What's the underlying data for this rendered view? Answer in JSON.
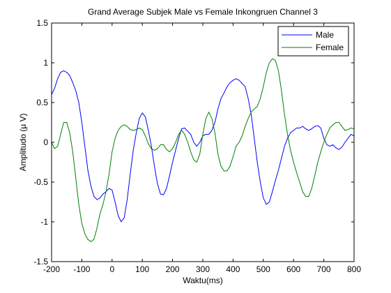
{
  "chart_data": {
    "type": "line",
    "title": "Grand Average Subjek Male vs Female Inkongruen Channel 3",
    "xlabel": "Waktu(ms)",
    "ylabel": "Amplitudo (μ V)",
    "xlim": [
      -200,
      800
    ],
    "ylim": [
      -1.5,
      1.5
    ],
    "xticks": [
      -200,
      -100,
      0,
      100,
      200,
      300,
      400,
      500,
      600,
      700,
      800
    ],
    "yticks": [
      -1.5,
      -1,
      -0.5,
      0,
      0.5,
      1,
      1.5
    ],
    "xtick_labels": [
      "-200",
      "-100",
      "0",
      "100",
      "200",
      "300",
      "400",
      "500",
      "600",
      "700",
      "800"
    ],
    "ytick_labels": [
      "-1.5",
      "-1",
      "-0.5",
      "0",
      "0.5",
      "1",
      "1.5"
    ],
    "grid": false,
    "legend_position": "top-right",
    "series": [
      {
        "name": "Male",
        "color": "#0000ff",
        "x": [
          -200,
          -190,
          -180,
          -170,
          -160,
          -150,
          -140,
          -130,
          -120,
          -110,
          -100,
          -90,
          -80,
          -70,
          -60,
          -50,
          -40,
          -30,
          -20,
          -10,
          0,
          10,
          20,
          30,
          40,
          50,
          60,
          70,
          80,
          90,
          100,
          110,
          120,
          130,
          140,
          150,
          160,
          170,
          180,
          190,
          200,
          210,
          220,
          230,
          240,
          250,
          260,
          270,
          280,
          290,
          300,
          310,
          320,
          330,
          340,
          350,
          360,
          370,
          380,
          390,
          400,
          410,
          420,
          430,
          440,
          450,
          460,
          470,
          480,
          490,
          500,
          510,
          520,
          530,
          540,
          550,
          560,
          570,
          580,
          590,
          600,
          610,
          620,
          630,
          640,
          650,
          660,
          670,
          680,
          690,
          700,
          710,
          720,
          730,
          740,
          750,
          760,
          770,
          780,
          790,
          800
        ],
        "y": [
          0.6,
          0.68,
          0.8,
          0.88,
          0.9,
          0.88,
          0.84,
          0.75,
          0.65,
          0.5,
          0.25,
          -0.05,
          -0.35,
          -0.55,
          -0.68,
          -0.72,
          -0.7,
          -0.65,
          -0.62,
          -0.58,
          -0.6,
          -0.75,
          -0.92,
          -1.0,
          -0.95,
          -0.72,
          -0.4,
          -0.1,
          0.12,
          0.3,
          0.37,
          0.32,
          0.15,
          -0.05,
          -0.3,
          -0.52,
          -0.65,
          -0.66,
          -0.58,
          -0.42,
          -0.25,
          -0.1,
          0.05,
          0.17,
          0.18,
          0.14,
          0.1,
          0.0,
          -0.05,
          0.0,
          0.08,
          0.1,
          0.1,
          0.15,
          0.25,
          0.42,
          0.55,
          0.62,
          0.7,
          0.75,
          0.78,
          0.8,
          0.78,
          0.74,
          0.7,
          0.55,
          0.35,
          0.05,
          -0.25,
          -0.5,
          -0.7,
          -0.78,
          -0.75,
          -0.62,
          -0.48,
          -0.35,
          -0.2,
          -0.05,
          0.05,
          0.12,
          0.15,
          0.18,
          0.18,
          0.2,
          0.17,
          0.15,
          0.17,
          0.2,
          0.21,
          0.18,
          0.05,
          -0.03,
          -0.05,
          -0.03,
          -0.07,
          -0.09,
          -0.06,
          0.0,
          0.05,
          0.1,
          0.08
        ]
      },
      {
        "name": "Female",
        "color": "#008000",
        "x": [
          -200,
          -190,
          -180,
          -170,
          -160,
          -150,
          -140,
          -130,
          -120,
          -110,
          -100,
          -90,
          -80,
          -70,
          -60,
          -50,
          -40,
          -30,
          -20,
          -10,
          0,
          10,
          20,
          30,
          40,
          50,
          60,
          70,
          80,
          90,
          100,
          110,
          120,
          130,
          140,
          150,
          160,
          170,
          180,
          190,
          200,
          210,
          220,
          230,
          240,
          250,
          260,
          270,
          280,
          290,
          300,
          310,
          320,
          330,
          340,
          350,
          360,
          370,
          380,
          390,
          400,
          410,
          420,
          430,
          440,
          450,
          460,
          470,
          480,
          490,
          500,
          510,
          520,
          530,
          540,
          550,
          560,
          570,
          580,
          590,
          600,
          610,
          620,
          630,
          640,
          650,
          660,
          670,
          680,
          690,
          700,
          710,
          720,
          730,
          740,
          750,
          760,
          770,
          780,
          790,
          800
        ],
        "y": [
          0.0,
          -0.08,
          -0.05,
          0.1,
          0.25,
          0.25,
          0.12,
          -0.12,
          -0.45,
          -0.78,
          -1.02,
          -1.15,
          -1.22,
          -1.25,
          -1.22,
          -1.08,
          -0.9,
          -0.78,
          -0.62,
          -0.4,
          -0.12,
          0.05,
          0.15,
          0.2,
          0.22,
          0.2,
          0.16,
          0.15,
          0.16,
          0.18,
          0.16,
          0.08,
          -0.02,
          -0.08,
          -0.1,
          -0.08,
          -0.03,
          -0.03,
          -0.09,
          -0.12,
          -0.08,
          0.0,
          0.1,
          0.15,
          0.1,
          0.0,
          -0.12,
          -0.22,
          -0.25,
          -0.15,
          0.1,
          0.3,
          0.38,
          0.3,
          0.12,
          -0.15,
          -0.3,
          -0.36,
          -0.36,
          -0.3,
          -0.18,
          -0.05,
          0.0,
          0.08,
          0.2,
          0.3,
          0.38,
          0.42,
          0.45,
          0.55,
          0.7,
          0.88,
          1.0,
          1.05,
          1.03,
          0.9,
          0.65,
          0.35,
          0.1,
          -0.1,
          -0.25,
          -0.38,
          -0.5,
          -0.62,
          -0.68,
          -0.68,
          -0.58,
          -0.42,
          -0.25,
          -0.12,
          0.0,
          0.1,
          0.18,
          0.22,
          0.25,
          0.25,
          0.2,
          0.15,
          0.16,
          0.18,
          0.17
        ]
      }
    ]
  }
}
